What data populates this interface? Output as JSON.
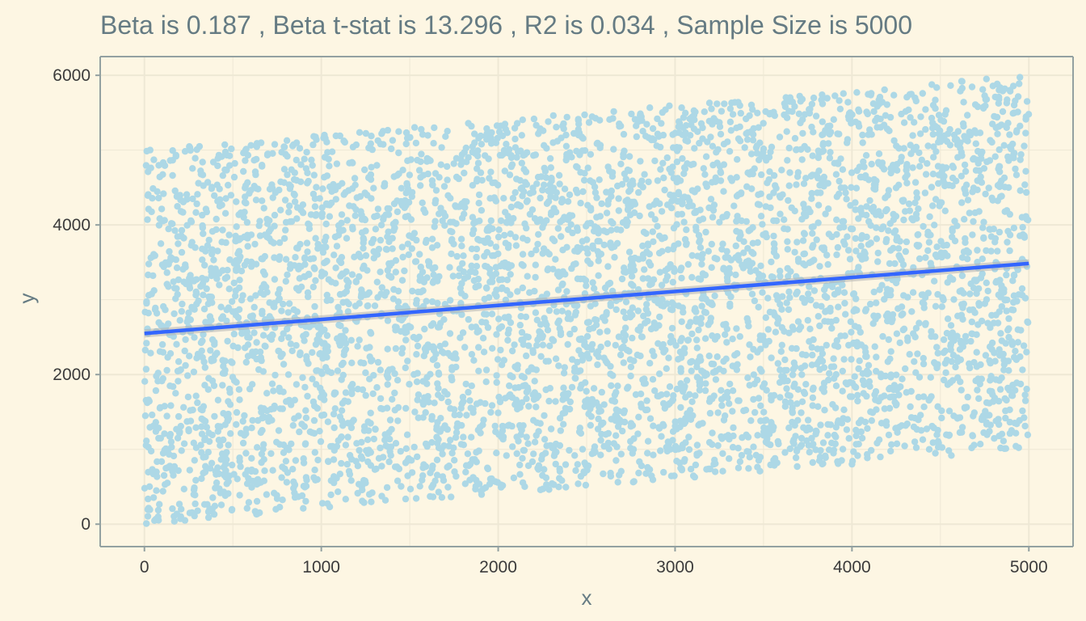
{
  "chart_data": {
    "type": "scatter",
    "title": "Beta is 0.187 , Beta t-stat is 13.296 , R2 is 0.034 , Sample Size is 5000",
    "xlabel": "x",
    "ylabel": "y",
    "xlim": [
      -250,
      5250
    ],
    "ylim": [
      -300,
      6250
    ],
    "x_ticks": [
      0,
      1000,
      2000,
      3000,
      4000,
      5000
    ],
    "x_tick_labels": [
      "0",
      "1000",
      "2000",
      "3000",
      "4000",
      "5000"
    ],
    "y_ticks": [
      0,
      2000,
      4000,
      6000
    ],
    "y_tick_labels": [
      "0",
      "2000",
      "4000",
      "6000"
    ],
    "grid": true,
    "legend": "none",
    "sample_size": 5000,
    "point_distribution": {
      "x_range": [
        0,
        5000
      ],
      "y_lower_at_x0": 0,
      "y_lower_at_x5000": 1000,
      "y_upper_at_x0": 5000,
      "y_upper_at_x5000": 6000
    },
    "fit_line": {
      "x": [
        0,
        5000
      ],
      "y": [
        2550,
        3485
      ],
      "color": "#3366ff",
      "confidence_band": true
    },
    "colors": {
      "background": "#fdf6e3",
      "points": "#add8e6",
      "fit_line": "#3366ff",
      "confidence_band": "#b3b3b3",
      "grid": "#eee8d5",
      "axis_line": "#93a1a1",
      "title": "#657b83",
      "tick_label": "#3b3b3b"
    }
  }
}
